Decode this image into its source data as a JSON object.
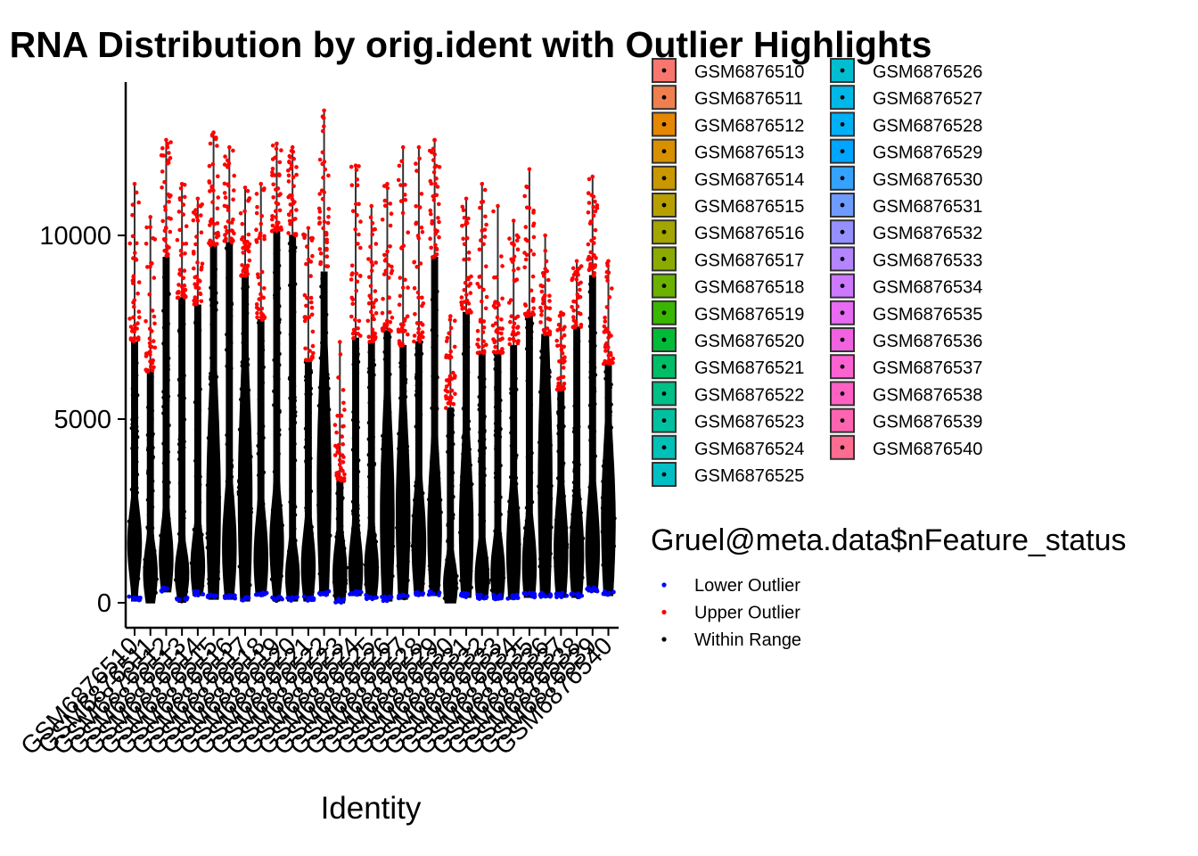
{
  "chart_data": {
    "type": "violin",
    "title": "RNA Distribution by orig.ident with Outlier Highlights",
    "xlabel": "Identity",
    "ylabel": "",
    "ylim": [
      -700,
      14000
    ],
    "yticks": [
      0,
      5000,
      10000
    ],
    "grid": false,
    "categories": [
      "GSM6876510",
      "GSM6876511",
      "GSM6876512",
      "GSM6876513",
      "GSM6876514",
      "GSM6876515",
      "GSM6876516",
      "GSM6876517",
      "GSM6876518",
      "GSM6876519",
      "GSM6876520",
      "GSM6876521",
      "GSM6876522",
      "GSM6876523",
      "GSM6876524",
      "GSM6876525",
      "GSM6876526",
      "GSM6876527",
      "GSM6876528",
      "GSM6876529",
      "GSM6876530",
      "GSM6876531",
      "GSM6876532",
      "GSM6876533",
      "GSM6876534",
      "GSM6876535",
      "GSM6876536",
      "GSM6876537",
      "GSM6876538",
      "GSM6876539",
      "GSM6876540"
    ],
    "fill_colors": [
      "#F8766D",
      "#F07F4F",
      "#E58700",
      "#D89000",
      "#C99800",
      "#B79F00",
      "#A3A500",
      "#8BAB00",
      "#6BB100",
      "#39B600",
      "#00BA38",
      "#00BE67",
      "#00C085",
      "#00C19F",
      "#00C0B8",
      "#00BFC4",
      "#00BDD0",
      "#00B8E7",
      "#00B0F6",
      "#00A5FF",
      "#35A2FF",
      "#6F9BFF",
      "#9590FF",
      "#B385FF",
      "#CD79FF",
      "#E76BF3",
      "#F062E0",
      "#FA62D2",
      "#FF61C3",
      "#FF64B0",
      "#FF6C91"
    ],
    "series": [
      {
        "name": "Lower Outlier",
        "color": "#0000FF"
      },
      {
        "name": "Upper Outlier",
        "color": "#FF0000"
      },
      {
        "name": "Within Range",
        "color": "#000000"
      }
    ],
    "groups": [
      {
        "min": 50,
        "max": 11400,
        "upper_threshold": 7100,
        "median": 1600,
        "wide": 600,
        "lower_count": 3
      },
      {
        "min": 0,
        "max": 10500,
        "upper_threshold": 6300,
        "median": 800,
        "wide": 400,
        "lower_count": 0
      },
      {
        "min": 300,
        "max": 12600,
        "upper_threshold": 9400,
        "median": 1200,
        "wide": 600,
        "lower_count": 3
      },
      {
        "min": 20,
        "max": 11400,
        "upper_threshold": 8300,
        "median": 800,
        "wide": 300,
        "lower_count": 2
      },
      {
        "min": 200,
        "max": 11000,
        "upper_threshold": 8100,
        "median": 1000,
        "wide": 500,
        "lower_count": 3
      },
      {
        "min": 100,
        "max": 12800,
        "upper_threshold": 9700,
        "median": 2600,
        "wide": 2500,
        "lower_count": 3
      },
      {
        "min": 100,
        "max": 12400,
        "upper_threshold": 9800,
        "median": 1500,
        "wide": 1000,
        "lower_count": 3
      },
      {
        "min": 50,
        "max": 11300,
        "upper_threshold": 8900,
        "median": 2800,
        "wide": 2600,
        "lower_count": 2
      },
      {
        "min": 200,
        "max": 11400,
        "upper_threshold": 7700,
        "median": 1200,
        "wide": 800,
        "lower_count": 3
      },
      {
        "min": 50,
        "max": 12500,
        "upper_threshold": 10100,
        "median": 1600,
        "wide": 800,
        "lower_count": 3
      },
      {
        "min": 50,
        "max": 12400,
        "upper_threshold": 10000,
        "median": 700,
        "wide": 400,
        "lower_count": 3
      },
      {
        "min": 50,
        "max": 10200,
        "upper_threshold": 6600,
        "median": 1000,
        "wide": 600,
        "lower_count": 3
      },
      {
        "min": 200,
        "max": 13400,
        "upper_threshold": 9000,
        "median": 3200,
        "wide": 2600,
        "lower_count": 3
      },
      {
        "min": 0,
        "max": 7100,
        "upper_threshold": 3300,
        "median": 800,
        "wide": 500,
        "lower_count": 2
      },
      {
        "min": 200,
        "max": 11900,
        "upper_threshold": 7200,
        "median": 900,
        "wide": 600,
        "lower_count": 3
      },
      {
        "min": 100,
        "max": 10800,
        "upper_threshold": 7100,
        "median": 900,
        "wide": 500,
        "lower_count": 3
      },
      {
        "min": 50,
        "max": 11400,
        "upper_threshold": 7400,
        "median": 2300,
        "wide": 2200,
        "lower_count": 3
      },
      {
        "min": 100,
        "max": 12400,
        "upper_threshold": 7000,
        "median": 2400,
        "wide": 2000,
        "lower_count": 3
      },
      {
        "min": 200,
        "max": 12400,
        "upper_threshold": 7100,
        "median": 1600,
        "wide": 1000,
        "lower_count": 3
      },
      {
        "min": 200,
        "max": 12600,
        "upper_threshold": 9400,
        "median": 2000,
        "wide": 1500,
        "lower_count": 3
      },
      {
        "min": 0,
        "max": 7800,
        "upper_threshold": 5300,
        "median": 500,
        "wide": 300,
        "lower_count": 0
      },
      {
        "min": 150,
        "max": 11000,
        "upper_threshold": 7900,
        "median": 2000,
        "wide": 1700,
        "lower_count": 3
      },
      {
        "min": 100,
        "max": 11400,
        "upper_threshold": 6800,
        "median": 700,
        "wide": 400,
        "lower_count": 3
      },
      {
        "min": 100,
        "max": 10800,
        "upper_threshold": 6800,
        "median": 800,
        "wide": 500,
        "lower_count": 3
      },
      {
        "min": 100,
        "max": 10400,
        "upper_threshold": 7000,
        "median": 1400,
        "wide": 1100,
        "lower_count": 3
      },
      {
        "min": 150,
        "max": 11800,
        "upper_threshold": 7800,
        "median": 1000,
        "wide": 700,
        "lower_count": 3
      },
      {
        "min": 150,
        "max": 10000,
        "upper_threshold": 7300,
        "median": 3200,
        "wide": 3000,
        "lower_count": 3
      },
      {
        "min": 150,
        "max": 7900,
        "upper_threshold": 5800,
        "median": 1400,
        "wide": 1000,
        "lower_count": 3
      },
      {
        "min": 150,
        "max": 9300,
        "upper_threshold": 7500,
        "median": 1300,
        "wide": 1000,
        "lower_count": 3
      },
      {
        "min": 300,
        "max": 11600,
        "upper_threshold": 8900,
        "median": 1500,
        "wide": 1000,
        "lower_count": 3
      },
      {
        "min": 200,
        "max": 9300,
        "upper_threshold": 6500,
        "median": 2200,
        "wide": 1700,
        "lower_count": 3
      }
    ],
    "legend_placement": "right",
    "legend_title": "Gruel@meta.data$nFeature_status"
  }
}
